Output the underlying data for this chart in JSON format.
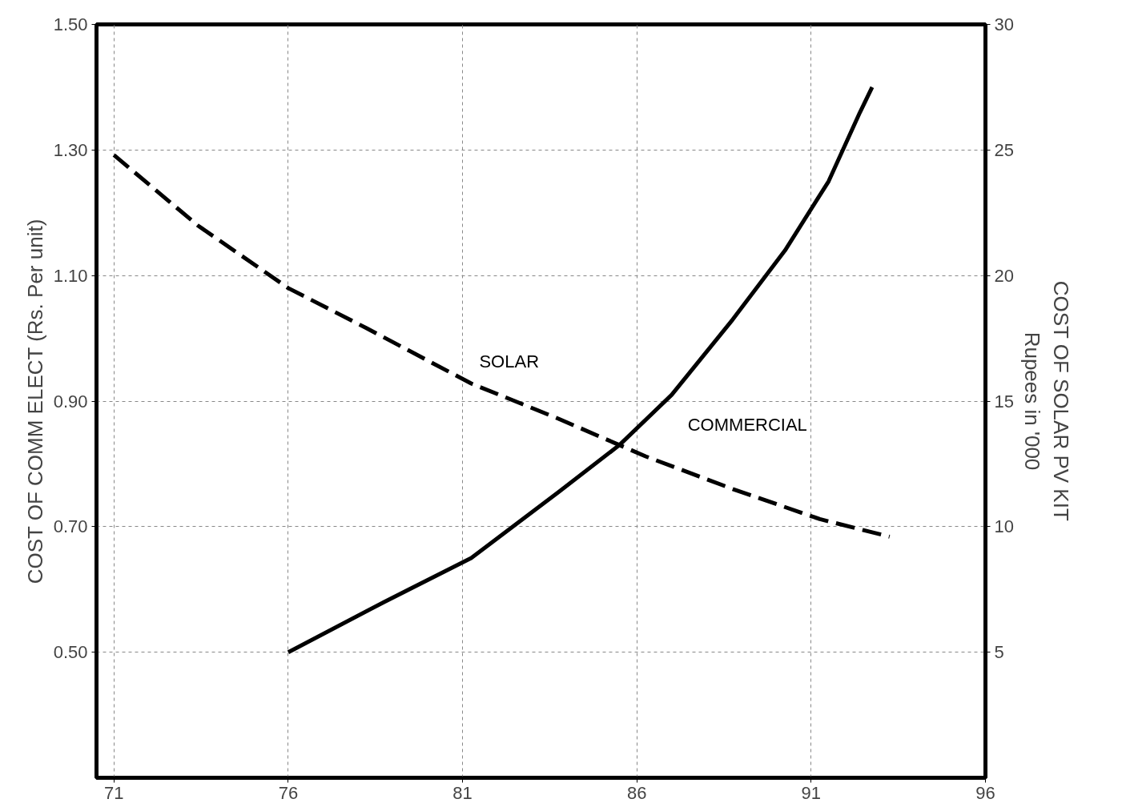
{
  "chart_data": {
    "type": "line",
    "ylabel": "COST OF COMM ELECT (Rs. Per unit)",
    "y2label": "COST OF SOLAR PV KIT\nRupees in '000",
    "xlim": [
      70.5,
      96
    ],
    "xticks": [
      71,
      76,
      81,
      86,
      91,
      96
    ],
    "ylim": [
      0.3,
      1.5
    ],
    "yticks": [
      {
        "value": 0.5,
        "label": "0.50"
      },
      {
        "value": 0.7,
        "label": "0.70"
      },
      {
        "value": 0.9,
        "label": "0.90"
      },
      {
        "value": 1.1,
        "label": "1.10"
      },
      {
        "value": 1.3,
        "label": "1.30"
      },
      {
        "value": 1.5,
        "label": "1.50"
      }
    ],
    "y2lim": [
      0,
      30
    ],
    "y2ticks": [
      5,
      10,
      15,
      20,
      25,
      30
    ],
    "grid": true,
    "series": [
      {
        "name": "SOLAR",
        "color": "#000000",
        "axis": "y2",
        "line_style": "dashed",
        "x": [
          71,
          73.4,
          76,
          78.25,
          81.25,
          83.75,
          86.25,
          88.75,
          91.25,
          93.25
        ],
        "values": [
          24.8,
          22.0,
          19.5,
          17.9,
          15.7,
          14.3,
          12.8,
          11.5,
          10.3,
          9.6
        ]
      },
      {
        "name": "COMMERCIAL",
        "color": "#000000",
        "line_style": "solid",
        "x": [
          76,
          78.75,
          81.25,
          83.75,
          85.5,
          87,
          88.75,
          90.25,
          91.5,
          92.4,
          92.75
        ],
        "values": [
          0.5,
          0.58,
          0.65,
          0.755,
          0.83,
          0.91,
          1.03,
          1.14,
          1.25,
          1.36,
          1.4
        ]
      }
    ]
  }
}
